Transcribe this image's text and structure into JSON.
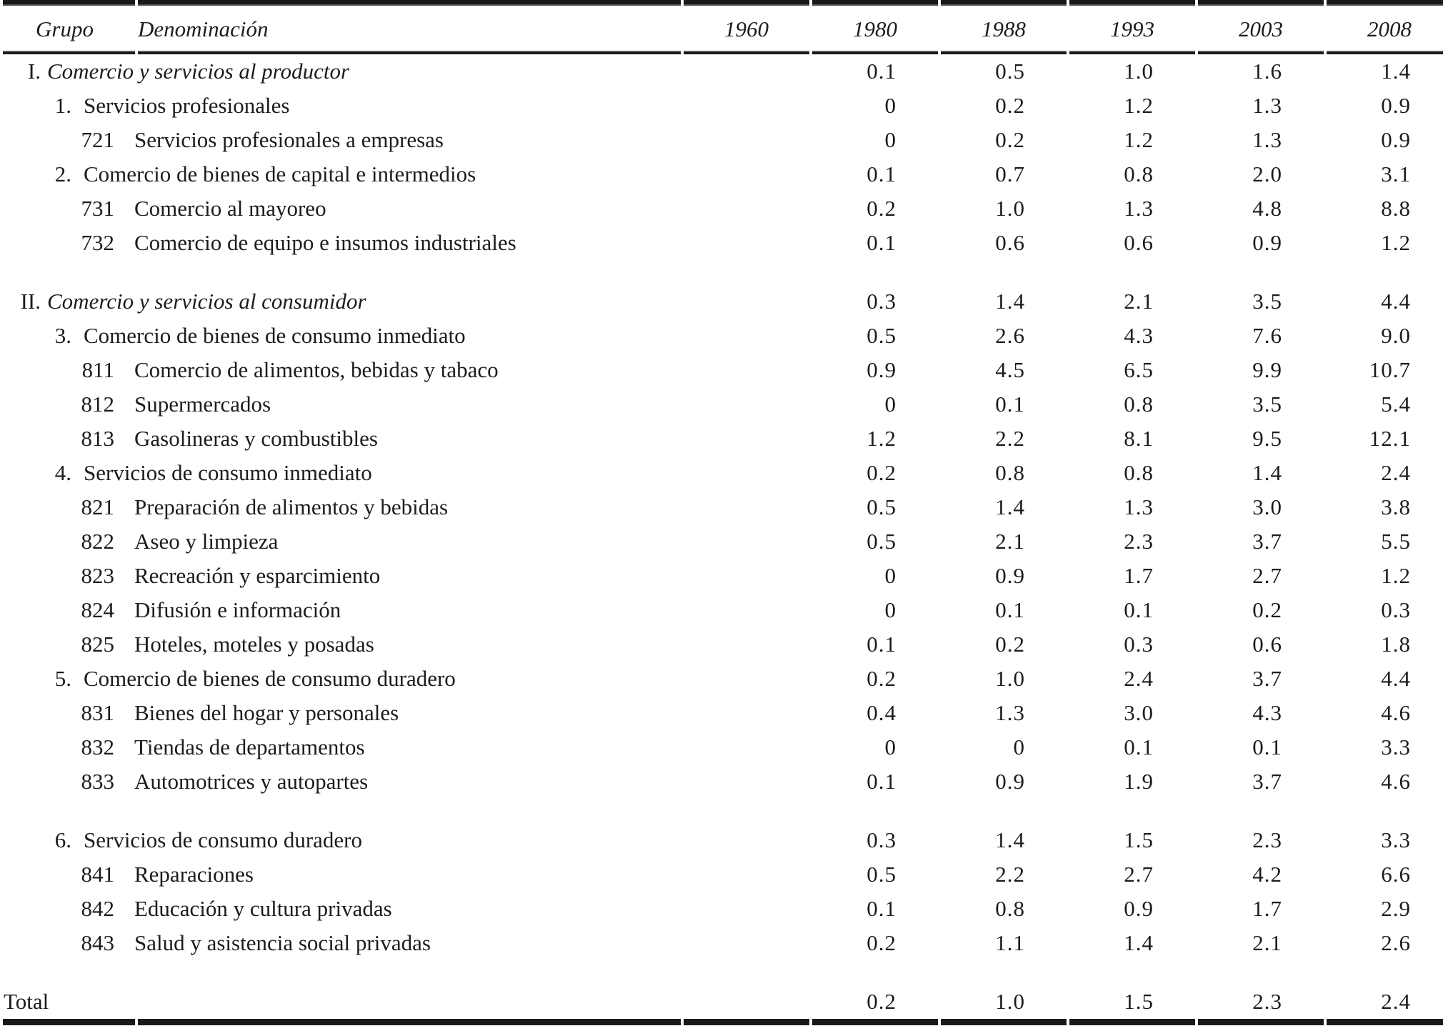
{
  "colors": {
    "text": "#1c1c1c",
    "rule": "#191919"
  },
  "table": {
    "columns": [
      "Grupo",
      "Denominación",
      "1960",
      "1980",
      "1988",
      "1993",
      "2003",
      "2008"
    ],
    "rows": [
      {
        "level": "roman",
        "marker": "I.",
        "label": "Comercio y servicios al productor",
        "values": [
          "",
          "0.1",
          "0.5",
          "1.0",
          "1.6",
          "1.4"
        ]
      },
      {
        "level": "num",
        "marker": "1.",
        "label": "Servicios profesionales",
        "values": [
          "",
          "0",
          "0.2",
          "1.2",
          "1.3",
          "0.9"
        ]
      },
      {
        "level": "code",
        "marker": "721",
        "label": "Servicios profesionales a empresas",
        "values": [
          "",
          "0",
          "0.2",
          "1.2",
          "1.3",
          "0.9"
        ]
      },
      {
        "level": "num",
        "marker": "2.",
        "label": "Comercio de bienes de capital e intermedios",
        "values": [
          "",
          "0.1",
          "0.7",
          "0.8",
          "2.0",
          "3.1"
        ]
      },
      {
        "level": "code",
        "marker": "731",
        "label": "Comercio al mayoreo",
        "values": [
          "",
          "0.2",
          "1.0",
          "1.3",
          "4.8",
          "8.8"
        ]
      },
      {
        "level": "code",
        "marker": "732",
        "label": "Comercio de equipo e insumos industriales",
        "values": [
          "",
          "0.1",
          "0.6",
          "0.6",
          "0.9",
          "1.2"
        ]
      },
      {
        "spacer": true
      },
      {
        "level": "roman",
        "marker": "II.",
        "label": "Comercio y servicios al consumidor",
        "values": [
          "",
          "0.3",
          "1.4",
          "2.1",
          "3.5",
          "4.4"
        ]
      },
      {
        "level": "num",
        "marker": "3.",
        "label": "Comercio de bienes de consumo inmediato",
        "values": [
          "",
          "0.5",
          "2.6",
          "4.3",
          "7.6",
          "9.0"
        ]
      },
      {
        "level": "code",
        "marker": "811",
        "label": "Comercio de alimentos, bebidas y tabaco",
        "values": [
          "",
          "0.9",
          "4.5",
          "6.5",
          "9.9",
          "10.7"
        ]
      },
      {
        "level": "code",
        "marker": "812",
        "label": "Supermercados",
        "values": [
          "",
          "0",
          "0.1",
          "0.8",
          "3.5",
          "5.4"
        ]
      },
      {
        "level": "code",
        "marker": "813",
        "label": "Gasolineras y combustibles",
        "values": [
          "",
          "1.2",
          "2.2",
          "8.1",
          "9.5",
          "12.1"
        ]
      },
      {
        "level": "num",
        "marker": "4.",
        "label": "Servicios de consumo inmediato",
        "values": [
          "",
          "0.2",
          "0.8",
          "0.8",
          "1.4",
          "2.4"
        ]
      },
      {
        "level": "code",
        "marker": "821",
        "label": "Preparación de alimentos y bebidas",
        "values": [
          "",
          "0.5",
          "1.4",
          "1.3",
          "3.0",
          "3.8"
        ]
      },
      {
        "level": "code",
        "marker": "822",
        "label": "Aseo y limpieza",
        "values": [
          "",
          "0.5",
          "2.1",
          "2.3",
          "3.7",
          "5.5"
        ]
      },
      {
        "level": "code",
        "marker": "823",
        "label": "Recreación y esparcimiento",
        "values": [
          "",
          "0",
          "0.9",
          "1.7",
          "2.7",
          "1.2"
        ]
      },
      {
        "level": "code",
        "marker": "824",
        "label": "Difusión e información",
        "values": [
          "",
          "0",
          "0.1",
          "0.1",
          "0.2",
          "0.3"
        ]
      },
      {
        "level": "code",
        "marker": "825",
        "label": "Hoteles, moteles y posadas",
        "values": [
          "",
          "0.1",
          "0.2",
          "0.3",
          "0.6",
          "1.8"
        ]
      },
      {
        "level": "num",
        "marker": "5.",
        "label": "Comercio de bienes de consumo duradero",
        "values": [
          "",
          "0.2",
          "1.0",
          "2.4",
          "3.7",
          "4.4"
        ]
      },
      {
        "level": "code",
        "marker": "831",
        "label": "Bienes del hogar y personales",
        "values": [
          "",
          "0.4",
          "1.3",
          "3.0",
          "4.3",
          "4.6"
        ]
      },
      {
        "level": "code",
        "marker": "832",
        "label": "Tiendas de departamentos",
        "values": [
          "",
          "0",
          "0",
          "0.1",
          "0.1",
          "3.3"
        ]
      },
      {
        "level": "code",
        "marker": "833",
        "label": "Automotrices y autopartes",
        "values": [
          "",
          "0.1",
          "0.9",
          "1.9",
          "3.7",
          "4.6"
        ]
      },
      {
        "spacer": true
      },
      {
        "level": "num",
        "marker": "6.",
        "label": "Servicios de consumo duradero",
        "values": [
          "",
          "0.3",
          "1.4",
          "1.5",
          "2.3",
          "3.3"
        ]
      },
      {
        "level": "code",
        "marker": "841",
        "label": "Reparaciones",
        "values": [
          "",
          "0.5",
          "2.2",
          "2.7",
          "4.2",
          "6.6"
        ]
      },
      {
        "level": "code",
        "marker": "842",
        "label": "Educación y cultura privadas",
        "values": [
          "",
          "0.1",
          "0.8",
          "0.9",
          "1.7",
          "2.9"
        ]
      },
      {
        "level": "code",
        "marker": "843",
        "label": "Salud y asistencia social privadas",
        "values": [
          "",
          "0.2",
          "1.1",
          "1.4",
          "2.1",
          "2.6"
        ]
      },
      {
        "spacer": true
      },
      {
        "level": "total",
        "marker": "",
        "label": "Total",
        "values": [
          "",
          "0.2",
          "1.0",
          "1.5",
          "2.3",
          "2.4"
        ]
      }
    ]
  }
}
